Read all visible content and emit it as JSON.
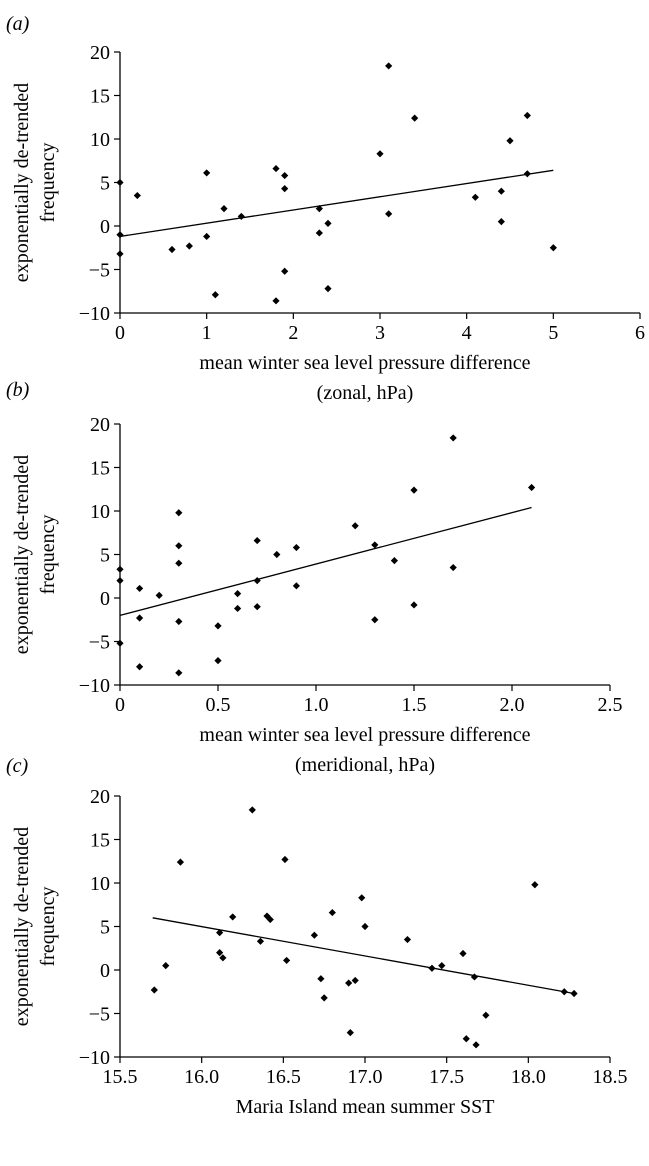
{
  "chart_data": [
    {
      "panel_label": "(a)",
      "type": "scatter",
      "xlabel_lines": [
        "mean winter sea level pressure difference",
        "(zonal, hPa)"
      ],
      "ylabel_lines": [
        "exponentially de-trended",
        "frequency"
      ],
      "xlim": [
        0,
        6
      ],
      "ylim": [
        -10,
        20
      ],
      "xticks": [
        0,
        1,
        2,
        3,
        4,
        5,
        6
      ],
      "xtick_labels": [
        "0",
        "1",
        "2",
        "3",
        "4",
        "5",
        "6"
      ],
      "yticks": [
        -10,
        -5,
        0,
        5,
        10,
        15,
        20
      ],
      "ytick_labels": [
        "−10",
        "−5",
        "0",
        "5",
        "10",
        "15",
        "20"
      ],
      "grid": false,
      "trendline": {
        "x": [
          0,
          5
        ],
        "y": [
          -1.2,
          6.4
        ]
      },
      "points": [
        {
          "x": 0.0,
          "y": 5.0
        },
        {
          "x": 0.0,
          "y": -1.0
        },
        {
          "x": 0.0,
          "y": -3.2
        },
        {
          "x": 0.2,
          "y": 3.5
        },
        {
          "x": 0.6,
          "y": -2.7
        },
        {
          "x": 0.8,
          "y": -2.3
        },
        {
          "x": 1.0,
          "y": 6.1
        },
        {
          "x": 1.0,
          "y": -1.2
        },
        {
          "x": 1.1,
          "y": -7.9
        },
        {
          "x": 1.2,
          "y": 2.0
        },
        {
          "x": 1.4,
          "y": 1.1
        },
        {
          "x": 1.8,
          "y": 6.6
        },
        {
          "x": 1.8,
          "y": -8.6
        },
        {
          "x": 1.9,
          "y": 5.8
        },
        {
          "x": 1.9,
          "y": 4.3
        },
        {
          "x": 1.9,
          "y": -5.2
        },
        {
          "x": 2.3,
          "y": 2.0
        },
        {
          "x": 2.3,
          "y": -0.8
        },
        {
          "x": 2.4,
          "y": 0.3
        },
        {
          "x": 2.4,
          "y": -7.2
        },
        {
          "x": 3.0,
          "y": 8.3
        },
        {
          "x": 3.1,
          "y": 18.4
        },
        {
          "x": 3.1,
          "y": 1.4
        },
        {
          "x": 3.4,
          "y": 12.4
        },
        {
          "x": 4.1,
          "y": 3.3
        },
        {
          "x": 4.4,
          "y": 4.0
        },
        {
          "x": 4.4,
          "y": 0.5
        },
        {
          "x": 4.5,
          "y": 9.8
        },
        {
          "x": 4.7,
          "y": 12.7
        },
        {
          "x": 4.7,
          "y": 6.0
        },
        {
          "x": 5.0,
          "y": -2.5
        }
      ]
    },
    {
      "panel_label": "(b)",
      "type": "scatter",
      "xlabel_lines": [
        "mean winter sea level pressure difference",
        "(meridional, hPa)"
      ],
      "ylabel_lines": [
        "exponentially de-trended",
        "frequency"
      ],
      "xlim": [
        0,
        2.5
      ],
      "ylim": [
        -10,
        20
      ],
      "xticks": [
        0,
        0.5,
        1.0,
        1.5,
        2.0,
        2.5
      ],
      "xtick_labels": [
        "0",
        "0.5",
        "1.0",
        "1.5",
        "2.0",
        "2.5"
      ],
      "yticks": [
        -10,
        -5,
        0,
        5,
        10,
        15,
        20
      ],
      "ytick_labels": [
        "−10",
        "−5",
        "0",
        "5",
        "10",
        "15",
        "20"
      ],
      "grid": false,
      "trendline": {
        "x": [
          0,
          2.1
        ],
        "y": [
          -2.0,
          10.4
        ]
      },
      "points": [
        {
          "x": 0.0,
          "y": 3.3
        },
        {
          "x": 0.0,
          "y": 2.0
        },
        {
          "x": 0.0,
          "y": -5.2
        },
        {
          "x": 0.1,
          "y": 1.1
        },
        {
          "x": 0.1,
          "y": -2.3
        },
        {
          "x": 0.1,
          "y": -7.9
        },
        {
          "x": 0.2,
          "y": 0.3
        },
        {
          "x": 0.3,
          "y": 9.8
        },
        {
          "x": 0.3,
          "y": 6.0
        },
        {
          "x": 0.3,
          "y": 4.0
        },
        {
          "x": 0.3,
          "y": -2.7
        },
        {
          "x": 0.3,
          "y": -8.6
        },
        {
          "x": 0.5,
          "y": -3.2
        },
        {
          "x": 0.5,
          "y": -7.2
        },
        {
          "x": 0.6,
          "y": 0.5
        },
        {
          "x": 0.6,
          "y": -1.2
        },
        {
          "x": 0.7,
          "y": 6.6
        },
        {
          "x": 0.7,
          "y": 2.0
        },
        {
          "x": 0.7,
          "y": -1.0
        },
        {
          "x": 0.8,
          "y": 5.0
        },
        {
          "x": 0.9,
          "y": 5.8
        },
        {
          "x": 0.9,
          "y": 1.4
        },
        {
          "x": 1.2,
          "y": 8.3
        },
        {
          "x": 1.3,
          "y": 6.1
        },
        {
          "x": 1.3,
          "y": -2.5
        },
        {
          "x": 1.4,
          "y": 4.3
        },
        {
          "x": 1.5,
          "y": 12.4
        },
        {
          "x": 1.5,
          "y": -0.8
        },
        {
          "x": 1.7,
          "y": 18.4
        },
        {
          "x": 1.7,
          "y": 3.5
        },
        {
          "x": 2.1,
          "y": 12.7
        }
      ]
    },
    {
      "panel_label": "(c)",
      "type": "scatter",
      "xlabel_lines": [
        "Maria Island mean summer SST"
      ],
      "ylabel_lines": [
        "exponentially de-trended",
        "frequency"
      ],
      "xlim": [
        15.5,
        18.5
      ],
      "ylim": [
        -10,
        20
      ],
      "xticks": [
        15.5,
        16.0,
        16.5,
        17.0,
        17.5,
        18.0,
        18.5
      ],
      "xtick_labels": [
        "15.5",
        "16.0",
        "16.5",
        "17.0",
        "17.5",
        "18.0",
        "18.5"
      ],
      "yticks": [
        -10,
        -5,
        0,
        5,
        10,
        15,
        20
      ],
      "ytick_labels": [
        "−10",
        "−5",
        "0",
        "5",
        "10",
        "15",
        "20"
      ],
      "grid": false,
      "trendline": {
        "x": [
          15.7,
          18.28
        ],
        "y": [
          6.0,
          -2.7
        ]
      },
      "points": [
        {
          "x": 15.71,
          "y": -2.3
        },
        {
          "x": 15.78,
          "y": 0.5
        },
        {
          "x": 15.87,
          "y": 12.4
        },
        {
          "x": 16.11,
          "y": 4.3
        },
        {
          "x": 16.11,
          "y": 2.0
        },
        {
          "x": 16.13,
          "y": 1.4
        },
        {
          "x": 16.19,
          "y": 6.1
        },
        {
          "x": 16.31,
          "y": 18.4
        },
        {
          "x": 16.36,
          "y": 3.3
        },
        {
          "x": 16.4,
          "y": 6.2
        },
        {
          "x": 16.42,
          "y": 5.8
        },
        {
          "x": 16.51,
          "y": 12.7
        },
        {
          "x": 16.52,
          "y": 1.1
        },
        {
          "x": 16.69,
          "y": 4.0
        },
        {
          "x": 16.73,
          "y": -1.0
        },
        {
          "x": 16.75,
          "y": -3.2
        },
        {
          "x": 16.8,
          "y": 6.6
        },
        {
          "x": 16.9,
          "y": -1.5
        },
        {
          "x": 16.91,
          "y": -7.2
        },
        {
          "x": 16.94,
          "y": -1.2
        },
        {
          "x": 16.98,
          "y": 8.3
        },
        {
          "x": 17.0,
          "y": 5.0
        },
        {
          "x": 17.26,
          "y": 3.5
        },
        {
          "x": 17.41,
          "y": 0.2
        },
        {
          "x": 17.47,
          "y": 0.5
        },
        {
          "x": 17.6,
          "y": 1.9
        },
        {
          "x": 17.62,
          "y": -7.9
        },
        {
          "x": 17.67,
          "y": -0.8
        },
        {
          "x": 17.68,
          "y": -8.6
        },
        {
          "x": 17.74,
          "y": -5.2
        },
        {
          "x": 18.04,
          "y": 9.8
        },
        {
          "x": 18.22,
          "y": -2.5
        },
        {
          "x": 18.28,
          "y": -2.7
        }
      ]
    }
  ]
}
